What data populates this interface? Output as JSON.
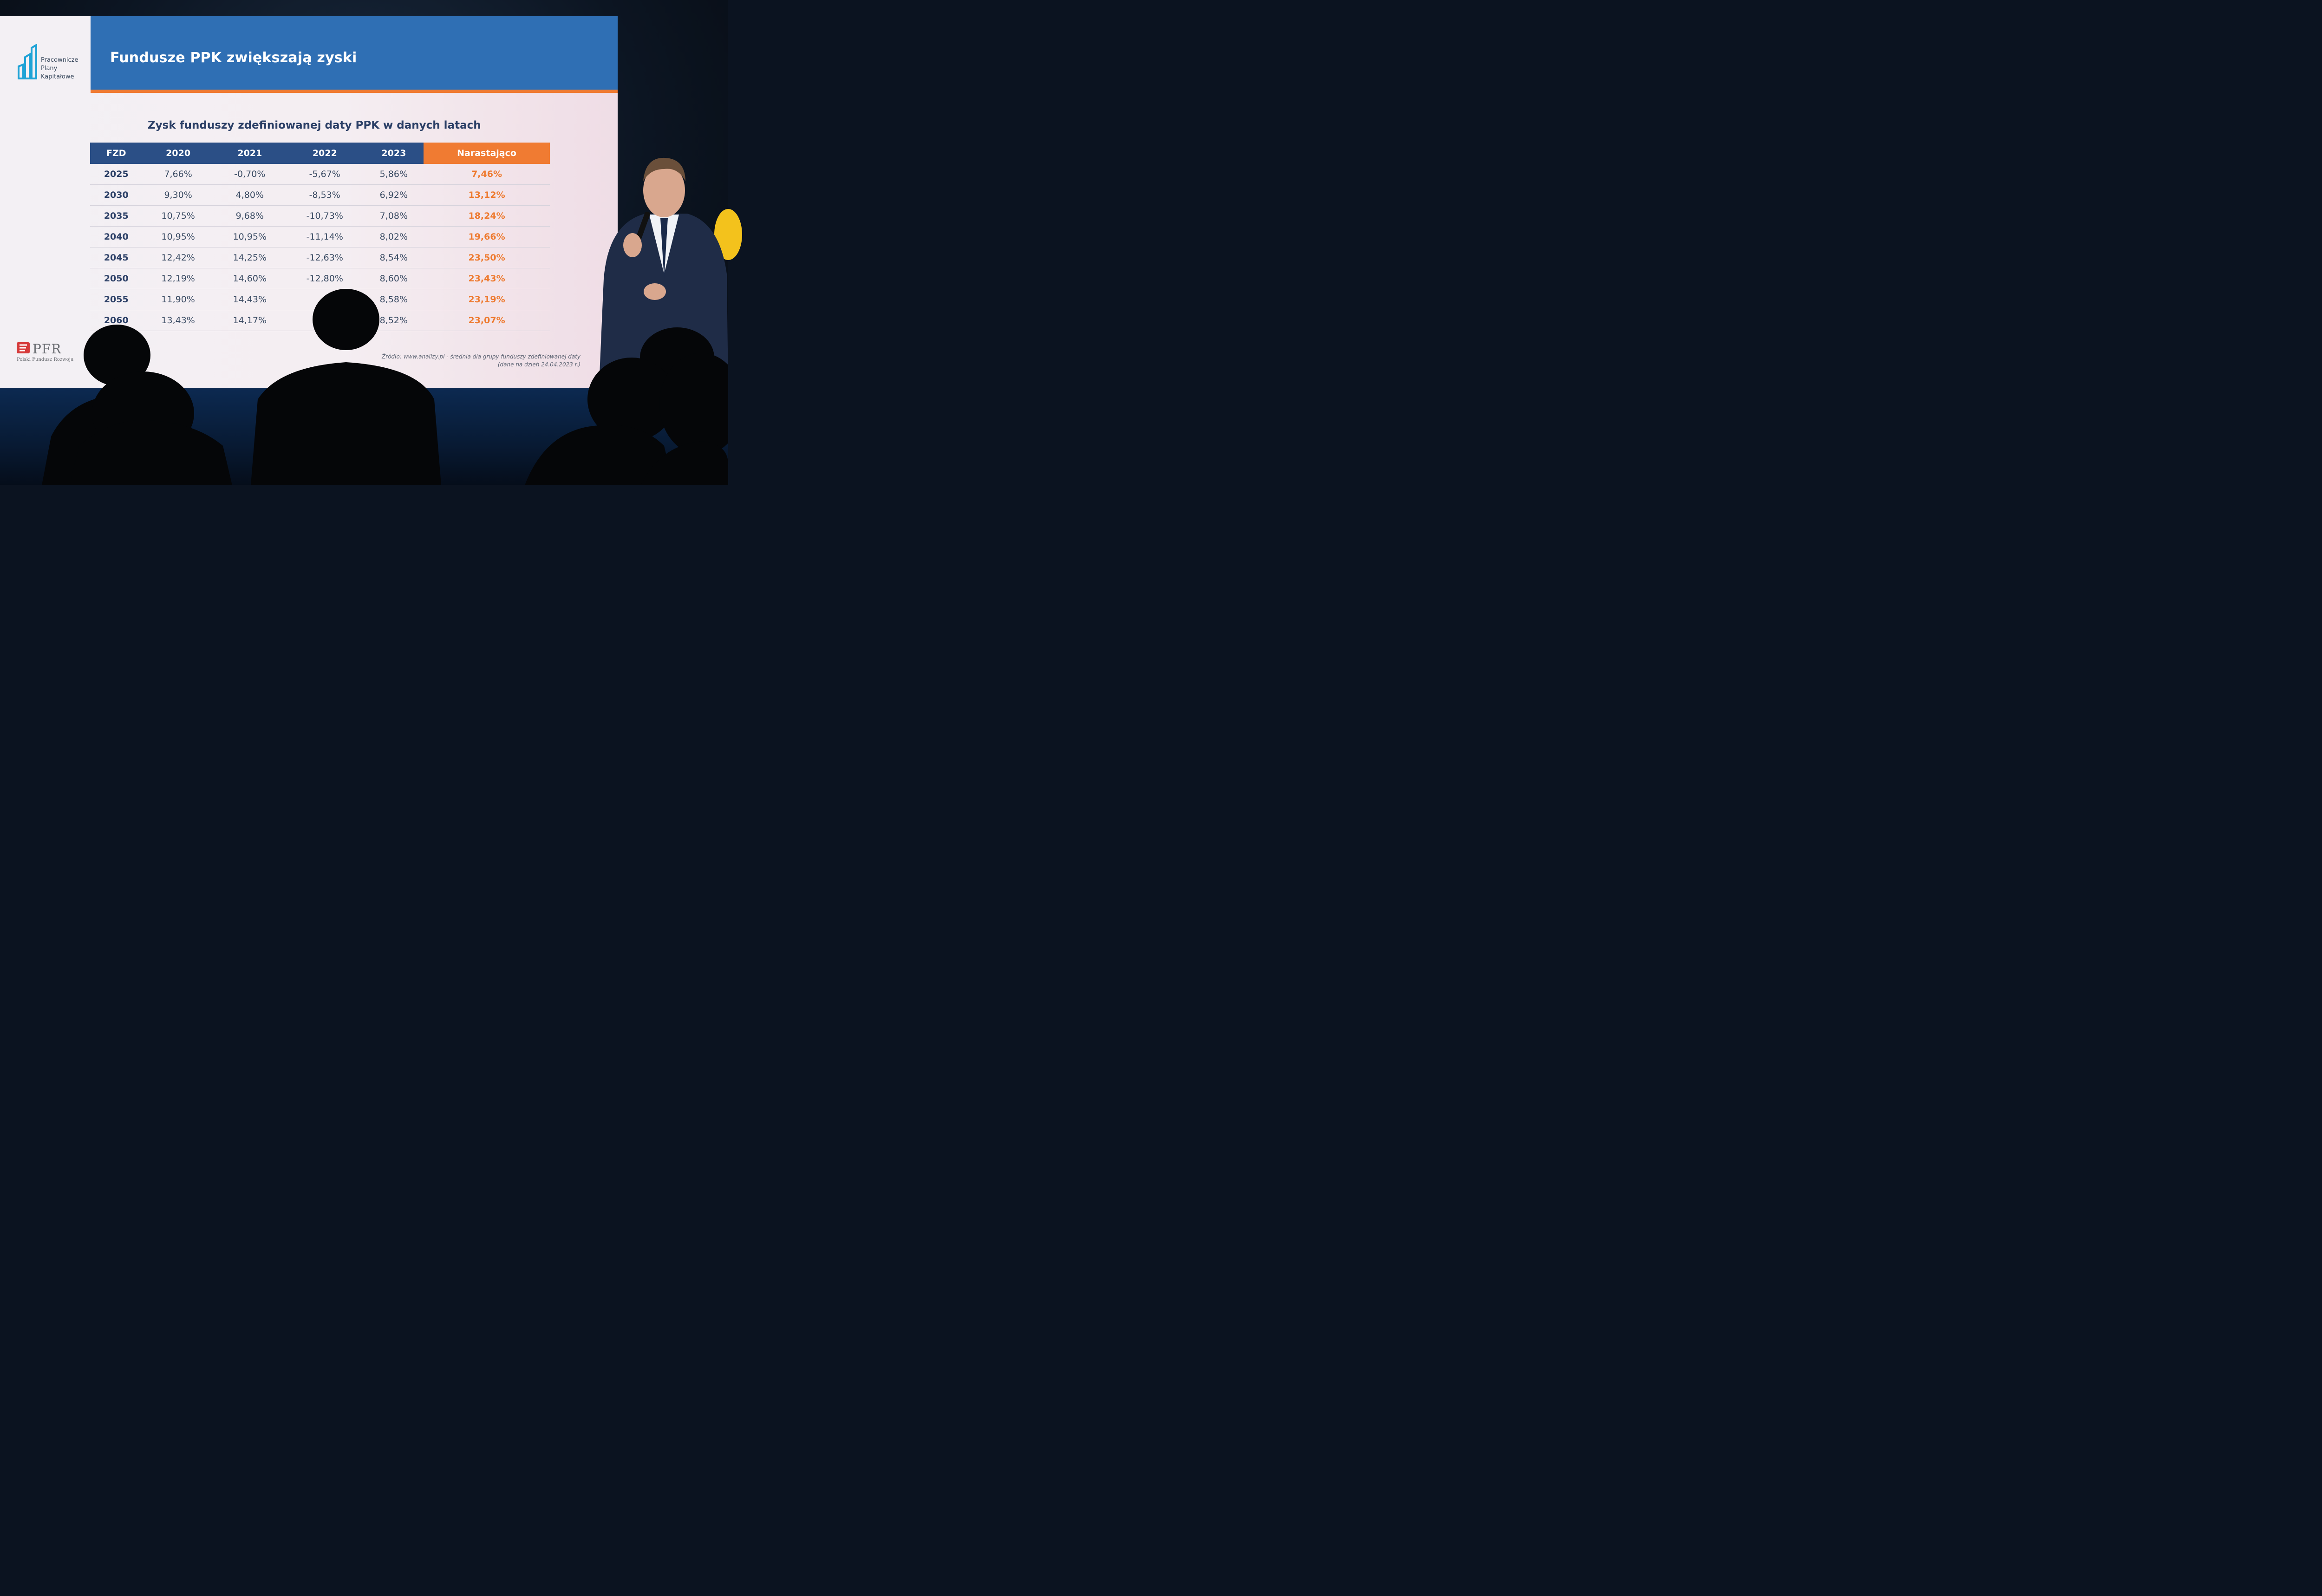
{
  "slide": {
    "logo_lines": [
      "Pracownicze",
      "Plany",
      "Kapitałowe"
    ],
    "title": "Fundusze PPK zwiększają zyski",
    "subtitle": "Zysk funduszy zdefiniowanej daty PPK w danych latach",
    "table": {
      "headers": [
        "FZD",
        "2020",
        "2021",
        "2022",
        "2023",
        "Narastająco"
      ],
      "rows": [
        [
          "2025",
          "7,66%",
          "-0,70%",
          "-5,67%",
          "5,86%",
          "7,46%"
        ],
        [
          "2030",
          "9,30%",
          "4,80%",
          "-8,53%",
          "6,92%",
          "13,12%"
        ],
        [
          "2035",
          "10,75%",
          "9,68%",
          "-10,73%",
          "7,08%",
          "18,24%"
        ],
        [
          "2040",
          "10,95%",
          "10,95%",
          "-11,14%",
          "8,02%",
          "19,66%"
        ],
        [
          "2045",
          "12,42%",
          "14,25%",
          "-12,63%",
          "8,54%",
          "23,50%"
        ],
        [
          "2050",
          "12,19%",
          "14,60%",
          "-12,80%",
          "8,60%",
          "23,43%"
        ],
        [
          "2055",
          "11,90%",
          "14,43%",
          "",
          "8,58%",
          "23,19%"
        ],
        [
          "2060",
          "13,43%",
          "14,17%",
          "",
          "8,52%",
          "23,07%"
        ]
      ]
    },
    "pfr": {
      "name": "PFR",
      "subtitle": "Polski Fundusz Rozwoju"
    },
    "source_lines": [
      "Źródło: www.analizy.pl - średnia dla grupy funduszy zdefiniowanej daty",
      "(dane na dzień 24.04.2023 r.)"
    ]
  },
  "colors": {
    "header_blue": "#2f6fb4",
    "table_header_navy": "#2b4f86",
    "accent_orange": "#f07b32"
  }
}
